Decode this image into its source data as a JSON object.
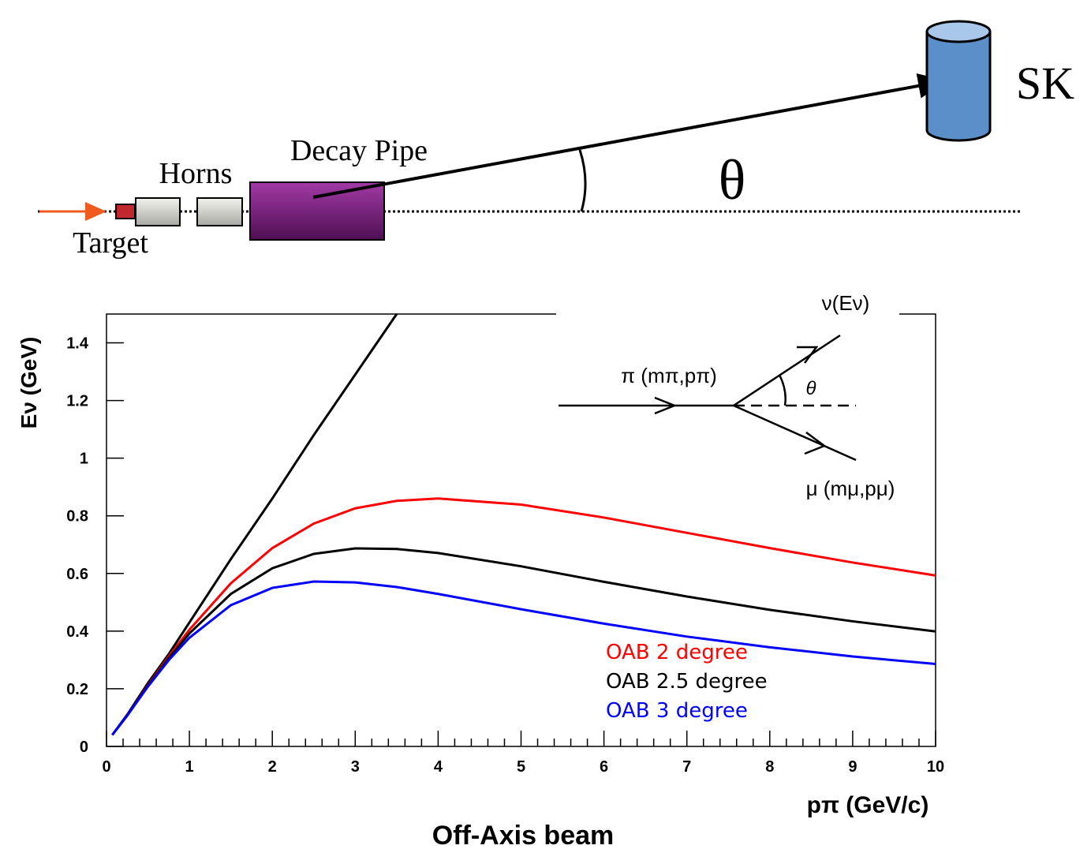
{
  "diagram": {
    "target": "Target",
    "horns": "Horns",
    "decay_pipe": "Decay Pipe",
    "angle": "θ",
    "detector": "SK"
  },
  "inset": {
    "pion": "π (mπ,pπ)",
    "neutrino": "ν(Eν)",
    "muon": "μ (mμ,pμ)",
    "angle": "θ"
  },
  "chart_data": {
    "type": "line",
    "title": "Off-Axis beam",
    "x_label": "pπ (GeV/c)",
    "y_label": "Eν (GeV)",
    "x": [
      0.07,
      0.25,
      0.5,
      0.75,
      1,
      1.5,
      2,
      2.5,
      3,
      3.5,
      4,
      5,
      6,
      7,
      8,
      9,
      10
    ],
    "series": [
      {
        "color": "#000000",
        "values": [
          0.04,
          0.11,
          0.22,
          0.32,
          0.43,
          0.65,
          0.86,
          1.08,
          1.29,
          1.5,
          null,
          null,
          null,
          null,
          null,
          null,
          null
        ]
      },
      {
        "name": "OAB 2 degree",
        "color": "#ff0000",
        "values": [
          0.04,
          0.107,
          0.212,
          0.312,
          0.405,
          0.566,
          0.688,
          0.773,
          0.826,
          0.852,
          0.86,
          0.839,
          0.794,
          0.741,
          0.688,
          0.638,
          0.593
        ]
      },
      {
        "name": "OAB 2.5 degree",
        "color": "#000000",
        "values": [
          0.04,
          0.107,
          0.21,
          0.306,
          0.392,
          0.529,
          0.618,
          0.668,
          0.687,
          0.685,
          0.671,
          0.625,
          0.571,
          0.52,
          0.474,
          0.434,
          0.399
        ]
      },
      {
        "name": "OAB 3 degree",
        "color": "#0000ff",
        "values": [
          0.04,
          0.107,
          0.208,
          0.299,
          0.377,
          0.49,
          0.55,
          0.572,
          0.569,
          0.553,
          0.529,
          0.476,
          0.426,
          0.381,
          0.344,
          0.312,
          0.286
        ]
      }
    ],
    "xlim": [
      0,
      10
    ],
    "xticks": [
      0,
      1,
      2,
      3,
      4,
      5,
      6,
      7,
      8,
      9,
      10
    ],
    "ylim": [
      0,
      1.5
    ],
    "yticks": [
      0,
      0.2,
      0.4,
      0.6,
      0.8,
      1,
      1.2,
      1.4
    ]
  }
}
